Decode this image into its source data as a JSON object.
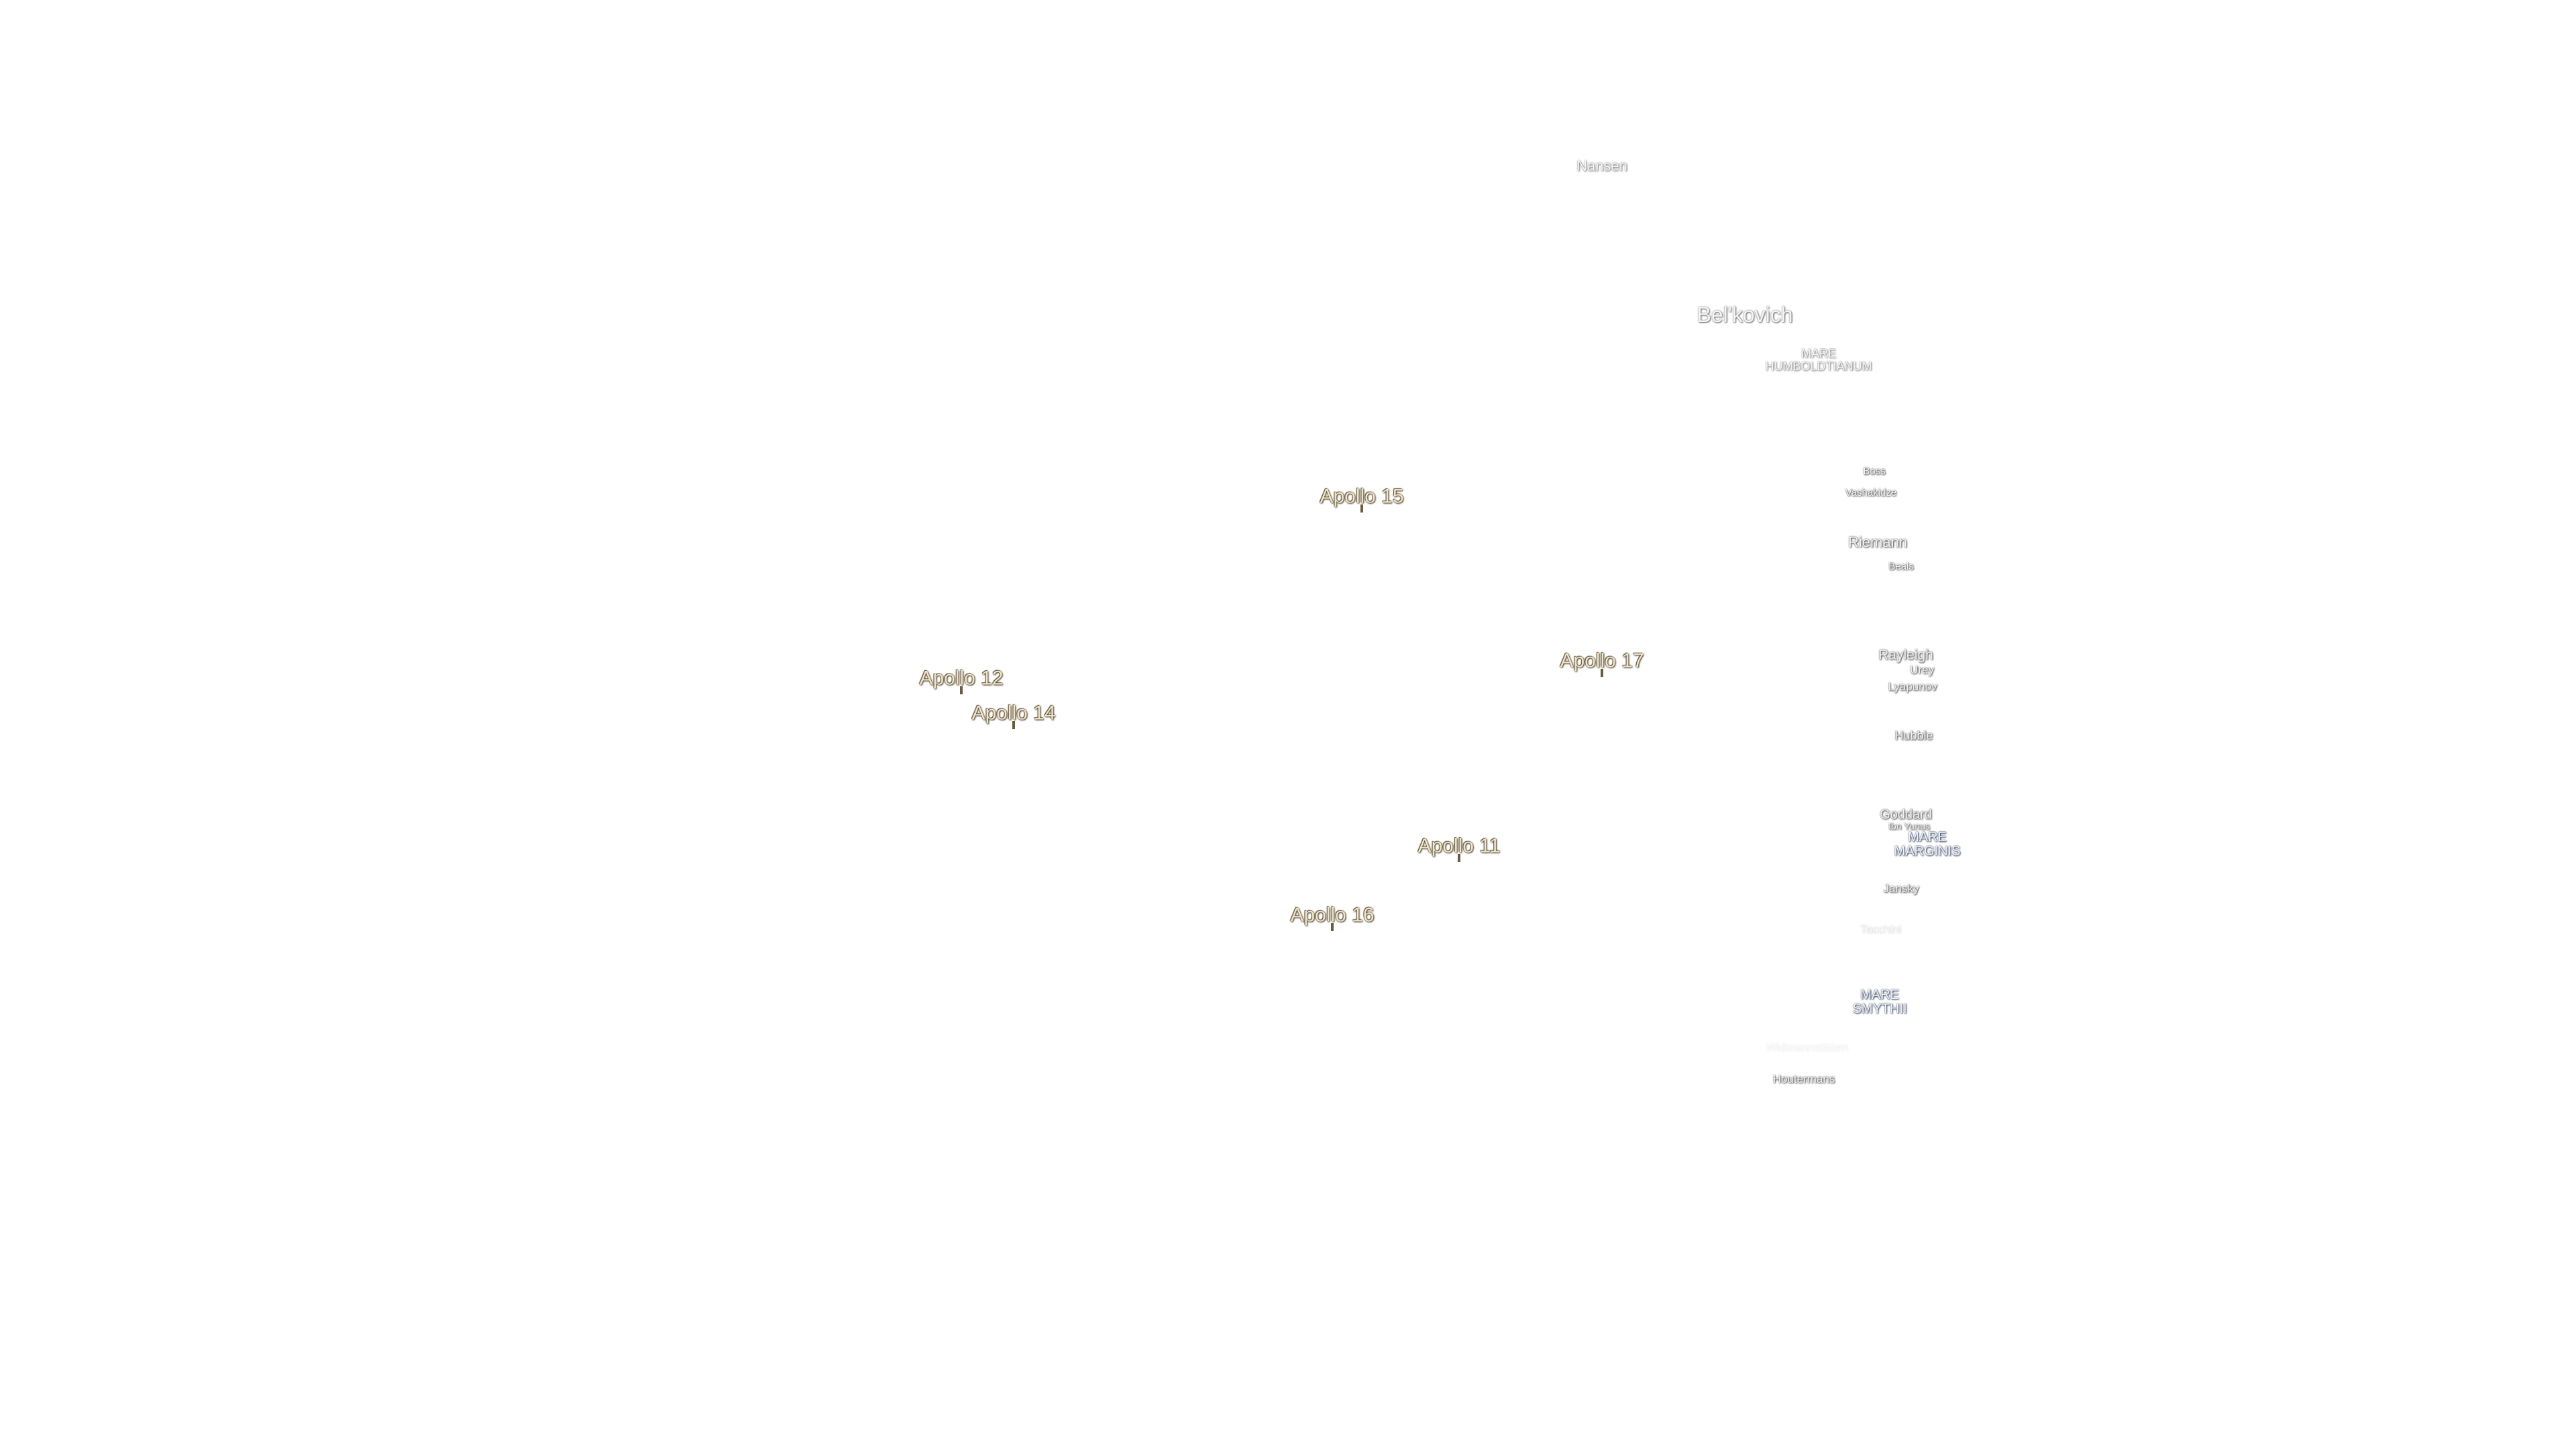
{
  "landing_sites": [
    "Apollo 15",
    "Apollo 12",
    "Apollo 14",
    "Apollo 17",
    "Apollo 11",
    "Apollo 16"
  ],
  "craters": [
    "Nansen",
    "Bel'kovich",
    "Boss",
    "Vashakidze",
    "Riemann",
    "Beals",
    "Rayleigh",
    "Urey",
    "Lyapunov",
    "Hubble",
    "Goddard",
    "Ibn Yunus",
    "Jansky",
    "Tacchini",
    "Widmannstätten",
    "Houtermans"
  ],
  "maria": [
    "MARE HUMBOLDTIANUM",
    "MARE MARGINIS",
    "MARE SMYTHII"
  ]
}
